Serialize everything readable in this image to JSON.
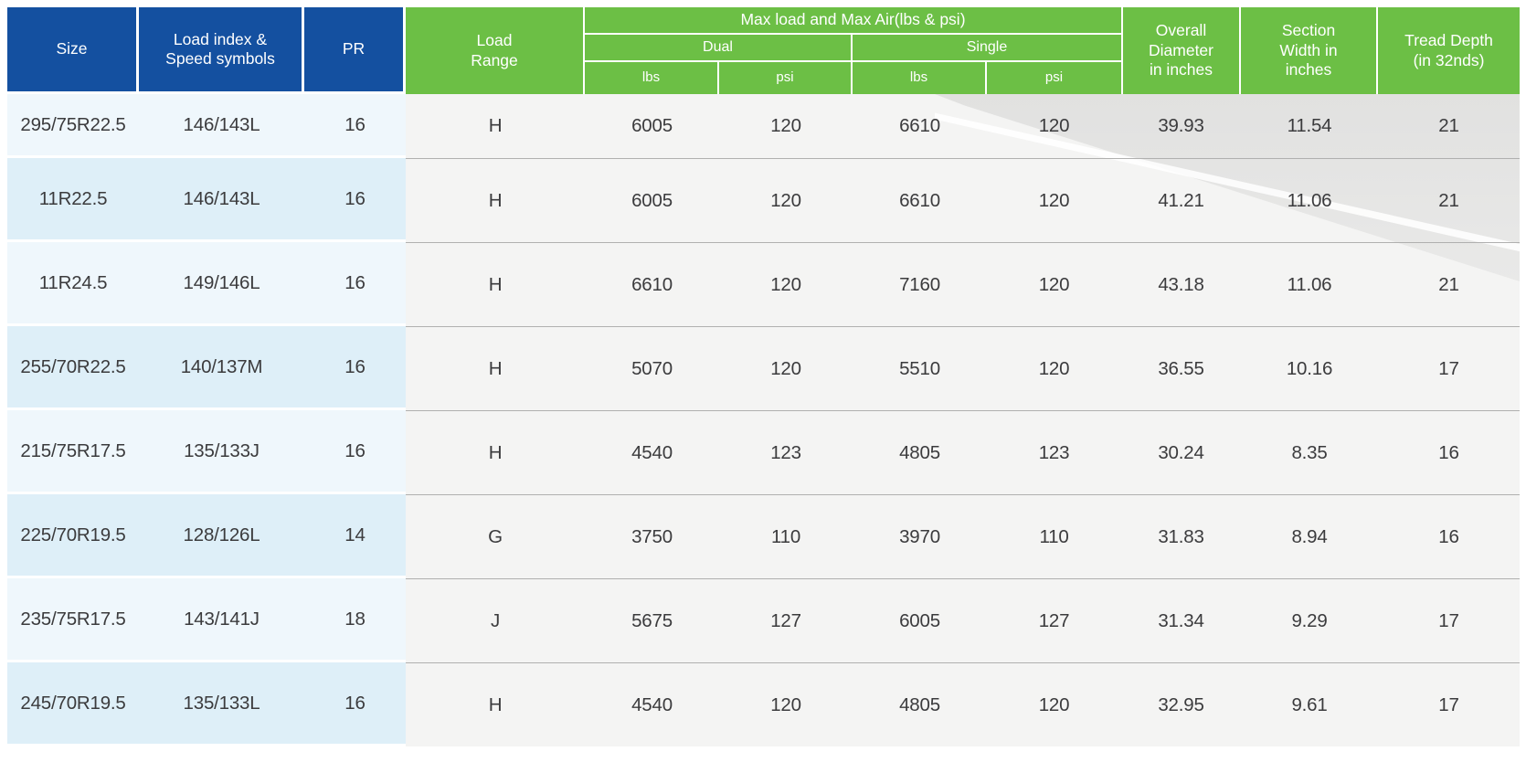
{
  "table": {
    "header": {
      "size": "Size",
      "load_index": "Load index &\nSpeed symbols",
      "pr": "PR",
      "load_range": "Load\nRange",
      "max_load_group": "Max load and Max Air(lbs & psi)",
      "dual": "Dual",
      "single": "Single",
      "dual_lbs": "lbs",
      "dual_psi": "psi",
      "single_lbs": "lbs",
      "single_psi": "psi",
      "overall_diameter": "Overall\nDiameter\nin inches",
      "section_width": "Section\nWidth in\ninches",
      "tread_depth": "Tread Depth\n(in 32nds)"
    },
    "rows": [
      {
        "size": "295/75R22.5",
        "load_index": "146/143L",
        "pr": 16,
        "load_range": "H",
        "dual_lbs": 6005,
        "dual_psi": 120,
        "single_lbs": 6610,
        "single_psi": 120,
        "overall_diameter": "39.93",
        "section_width": "11.54",
        "tread_depth": 21
      },
      {
        "size": "11R22.5",
        "load_index": "146/143L",
        "pr": 16,
        "load_range": "H",
        "dual_lbs": 6005,
        "dual_psi": 120,
        "single_lbs": 6610,
        "single_psi": 120,
        "overall_diameter": "41.21",
        "section_width": "11.06",
        "tread_depth": 21
      },
      {
        "size": "11R24.5",
        "load_index": "149/146L",
        "pr": 16,
        "load_range": "H",
        "dual_lbs": 6610,
        "dual_psi": 120,
        "single_lbs": 7160,
        "single_psi": 120,
        "overall_diameter": "43.18",
        "section_width": "11.06",
        "tread_depth": 21
      },
      {
        "size": "255/70R22.5",
        "load_index": "140/137M",
        "pr": 16,
        "load_range": "H",
        "dual_lbs": 5070,
        "dual_psi": 120,
        "single_lbs": 5510,
        "single_psi": 120,
        "overall_diameter": "36.55",
        "section_width": "10.16",
        "tread_depth": 17
      },
      {
        "size": "215/75R17.5",
        "load_index": "135/133J",
        "pr": 16,
        "load_range": "H",
        "dual_lbs": 4540,
        "dual_psi": 123,
        "single_lbs": 4805,
        "single_psi": 123,
        "overall_diameter": "30.24",
        "section_width": "8.35",
        "tread_depth": 16
      },
      {
        "size": "225/70R19.5",
        "load_index": "128/126L",
        "pr": 14,
        "load_range": "G",
        "dual_lbs": 3750,
        "dual_psi": 110,
        "single_lbs": 3970,
        "single_psi": 110,
        "overall_diameter": "31.83",
        "section_width": "8.94",
        "tread_depth": 16
      },
      {
        "size": "235/75R17.5",
        "load_index": "143/141J",
        "pr": 18,
        "load_range": "J",
        "dual_lbs": 5675,
        "dual_psi": 127,
        "single_lbs": 6005,
        "single_psi": 127,
        "overall_diameter": "31.34",
        "section_width": "9.29",
        "tread_depth": 17
      },
      {
        "size": "245/70R19.5",
        "load_index": "135/133L",
        "pr": 16,
        "load_range": "H",
        "dual_lbs": 4540,
        "dual_psi": 120,
        "single_lbs": 4805,
        "single_psi": 120,
        "overall_diameter": "32.95",
        "section_width": "9.61",
        "tread_depth": 17
      }
    ]
  },
  "colors": {
    "header_blue": "#1450A0",
    "header_green": "#6CBF45",
    "row_blue_light": "#EFF7FC",
    "row_blue_dark": "#DEEFF8",
    "right_background": "#F4F4F3",
    "separator_gray": "#B0B0AF",
    "text": "#3B3B3D"
  }
}
